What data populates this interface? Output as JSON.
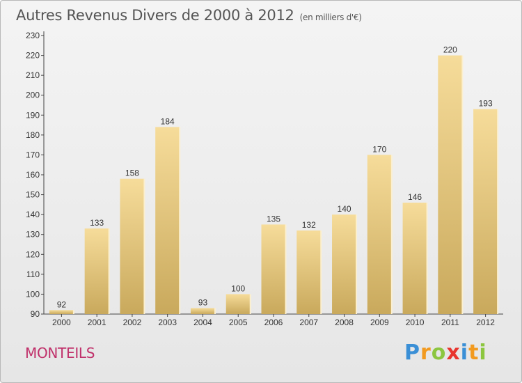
{
  "header": {
    "title": "Autres Revenus Divers de 2000 à 2012",
    "unit": "(en milliers d'€)"
  },
  "footer": {
    "town": "MONTEILS",
    "brand": {
      "letters": [
        "P",
        "r",
        "o",
        "x",
        "i",
        "t",
        "i"
      ],
      "colors": [
        "#3a8fd6",
        "#f29a1f",
        "#8cc63f",
        "#e8352e",
        "#3a8fd6",
        "#f29a1f",
        "#8cc63f"
      ]
    }
  },
  "colors": {
    "bar_light": "#f6dc9a",
    "bar_dark": "#c9a95c",
    "axis": "#444444",
    "text": "#333333"
  },
  "chart_data": {
    "type": "bar",
    "categories": [
      "2000",
      "2001",
      "2002",
      "2003",
      "2004",
      "2005",
      "2006",
      "2007",
      "2008",
      "2009",
      "2010",
      "2011",
      "2012"
    ],
    "values": [
      92,
      133,
      158,
      184,
      93,
      100,
      135,
      132,
      140,
      170,
      146,
      220,
      193
    ],
    "title": "Autres Revenus Divers de 2000 à 2012",
    "xlabel": "",
    "ylabel": "",
    "ylim": [
      90,
      230
    ],
    "yticks": [
      90,
      100,
      110,
      120,
      130,
      140,
      150,
      160,
      170,
      180,
      190,
      200,
      210,
      220,
      230
    ],
    "grid": false,
    "data_labels": true
  }
}
